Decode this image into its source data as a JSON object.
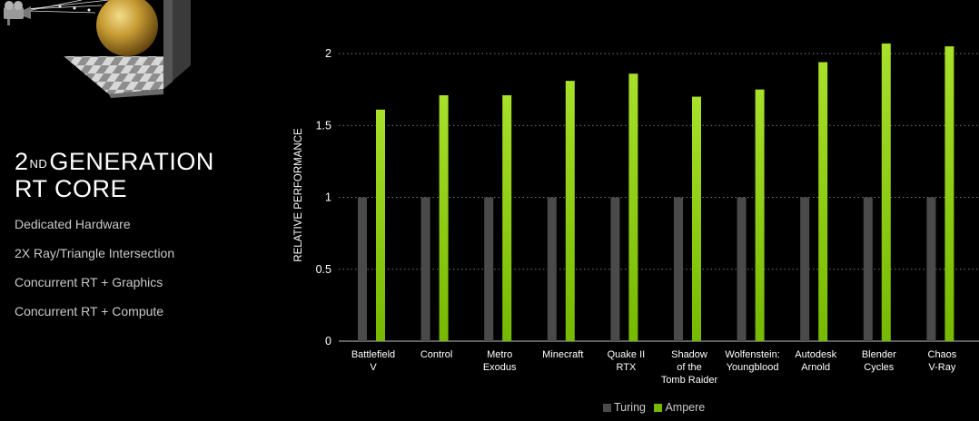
{
  "slide": {
    "heading_line1_pre": "2",
    "heading_line1_sup": "ND",
    "heading_line1_post": "GENERATION",
    "heading_line2": "RT CORE",
    "features": [
      "Dedicated Hardware",
      "2X Ray/Triangle Intersection",
      "Concurrent RT + Graphics",
      "Concurrent RT + Compute"
    ]
  },
  "colors": {
    "turing": "#4a4a4a",
    "ampere": "#76b900",
    "ampere_light": "#a8e02a",
    "grid": "#7a7a7a"
  },
  "chart_data": {
    "type": "bar",
    "title": "",
    "xlabel": "",
    "ylabel": "RELATIVE PERFORMANCE",
    "ylim": [
      0,
      2.1
    ],
    "yticks": [
      0,
      0.5,
      1,
      1.5,
      2
    ],
    "ytick_labels": [
      "0",
      "0.5",
      "1",
      "1.5",
      "2"
    ],
    "grid": true,
    "legend_position": "bottom",
    "categories": [
      [
        "Battlefield",
        "V"
      ],
      [
        "Control"
      ],
      [
        "Metro",
        "Exodus"
      ],
      [
        "Minecraft"
      ],
      [
        "Quake II",
        "RTX"
      ],
      [
        "Shadow",
        "of the",
        "Tomb Raider"
      ],
      [
        "Wolfenstein:",
        "Youngblood"
      ],
      [
        "Autodesk",
        "Arnold"
      ],
      [
        "Blender",
        "Cycles"
      ],
      [
        "Chaos",
        "V-Ray"
      ]
    ],
    "series": [
      {
        "name": "Turing",
        "values": [
          1,
          1,
          1,
          1,
          1,
          1,
          1,
          1,
          1,
          1
        ]
      },
      {
        "name": "Ampere",
        "values": [
          1.61,
          1.71,
          1.71,
          1.81,
          1.86,
          1.7,
          1.75,
          1.94,
          2.07,
          2.05
        ]
      }
    ]
  }
}
